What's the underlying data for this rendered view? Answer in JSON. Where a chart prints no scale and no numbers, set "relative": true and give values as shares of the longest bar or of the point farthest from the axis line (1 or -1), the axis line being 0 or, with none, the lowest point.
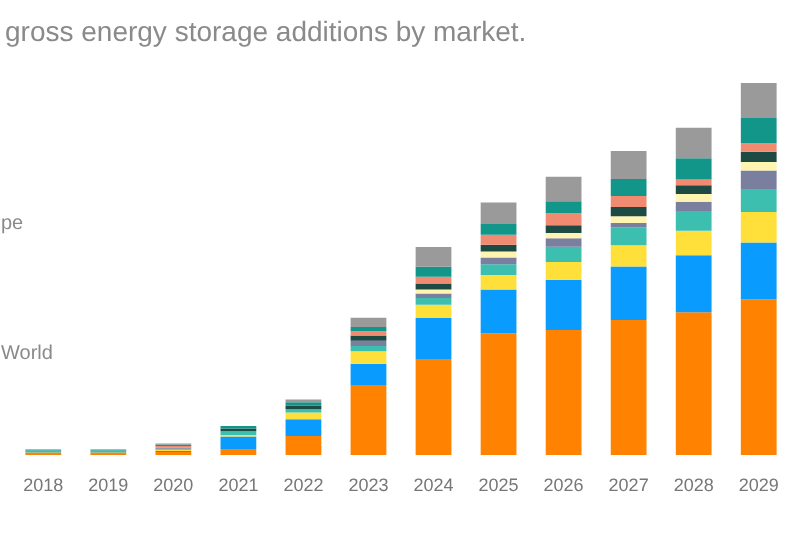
{
  "chart_data": {
    "type": "bar",
    "stacked": true,
    "relative": true,
    "title": "gross energy storage additions by market.",
    "categories": [
      "2018",
      "2019",
      "2020",
      "2021",
      "2022",
      "2023",
      "2024",
      "2025",
      "2026",
      "2027",
      "2028",
      "2029"
    ],
    "annotations": [
      "pe",
      "World"
    ],
    "series": [
      {
        "color": "#ff8200",
        "values": [
          0.007,
          0.007,
          0.008,
          0.016,
          0.051,
          0.188,
          0.258,
          0.327,
          0.336,
          0.363,
          0.384,
          0.418
        ]
      },
      {
        "color": "#0a9bff",
        "values": [
          0,
          0,
          0.003,
          0.034,
          0.045,
          0.057,
          0.11,
          0.118,
          0.135,
          0.144,
          0.153,
          0.153
        ]
      },
      {
        "color": "#ffe03a",
        "values": [
          0,
          0,
          0.003,
          0.004,
          0.018,
          0.034,
          0.036,
          0.039,
          0.048,
          0.057,
          0.066,
          0.082
        ]
      },
      {
        "color": "#3dbfb0",
        "values": [
          0.005,
          0.005,
          0.003,
          0.01,
          0.009,
          0.014,
          0.018,
          0.029,
          0.041,
          0.048,
          0.053,
          0.062
        ]
      },
      {
        "color": "#7a7fa0",
        "values": [
          0,
          0,
          0.003,
          0,
          0,
          0.014,
          0.012,
          0.018,
          0.023,
          0.012,
          0.025,
          0.05
        ]
      },
      {
        "color": "#fff5b0",
        "values": [
          0,
          0,
          0,
          0,
          0,
          0,
          0.011,
          0.016,
          0.014,
          0.018,
          0.021,
          0.023
        ]
      },
      {
        "color": "#1e4a44",
        "values": [
          0,
          0,
          0,
          0.007,
          0.01,
          0.014,
          0.016,
          0.018,
          0.021,
          0.025,
          0.023,
          0.027
        ]
      },
      {
        "color": "#f08a70",
        "values": [
          0,
          0,
          0.004,
          0,
          0,
          0.012,
          0.018,
          0.027,
          0.032,
          0.029,
          0.016,
          0.023
        ]
      },
      {
        "color": "#13968a",
        "values": [
          0.003,
          0.003,
          0.004,
          0.007,
          0.009,
          0.011,
          0.027,
          0.029,
          0.032,
          0.046,
          0.057,
          0.068
        ]
      },
      {
        "color": "#9a9a9a",
        "values": [
          0,
          0,
          0.003,
          0,
          0.007,
          0.025,
          0.053,
          0.058,
          0.066,
          0.075,
          0.082,
          0.094
        ]
      }
    ]
  }
}
